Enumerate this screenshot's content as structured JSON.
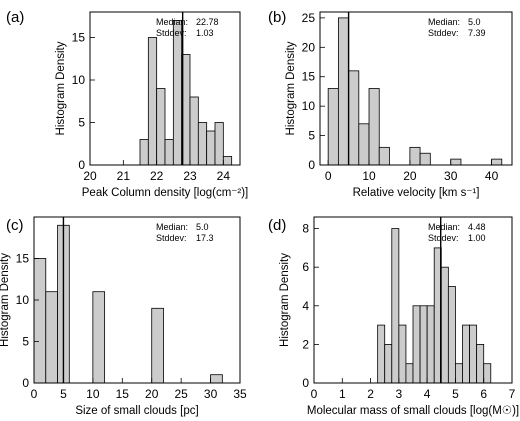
{
  "chart_data": [
    {
      "type": "bar",
      "panel_label": "(a)",
      "xlabel": "Peak Column density [log(cm⁻²)]",
      "ylabel": "Histogram Density",
      "xlim": [
        20,
        24.5
      ],
      "ylim": [
        0,
        18
      ],
      "xticks": [
        20,
        21,
        22,
        23,
        24
      ],
      "xtick_labels": [
        "20",
        "21",
        "22",
        "23",
        "24"
      ],
      "yticks": [
        0,
        5,
        10,
        15
      ],
      "ytick_labels": [
        "0",
        "5",
        "10",
        "15"
      ],
      "bins": [
        {
          "x0": 21.5,
          "x1": 21.75,
          "value": 3
        },
        {
          "x0": 21.75,
          "x1": 22.0,
          "value": 15
        },
        {
          "x0": 22.0,
          "x1": 22.25,
          "value": 9
        },
        {
          "x0": 22.25,
          "x1": 22.5,
          "value": 3
        },
        {
          "x0": 22.5,
          "x1": 22.75,
          "value": 17
        },
        {
          "x0": 22.75,
          "x1": 23.0,
          "value": 13
        },
        {
          "x0": 23.0,
          "x1": 23.25,
          "value": 8
        },
        {
          "x0": 23.25,
          "x1": 23.5,
          "value": 5
        },
        {
          "x0": 23.5,
          "x1": 23.75,
          "value": 4
        },
        {
          "x0": 23.75,
          "x1": 24.0,
          "value": 5
        },
        {
          "x0": 24.0,
          "x1": 24.25,
          "value": 1
        }
      ],
      "median_line": 22.78,
      "stats": {
        "median_label": "Median:",
        "median_value": "22.78",
        "stddev_label": "Stddev:",
        "stddev_value": "1.03"
      }
    },
    {
      "type": "bar",
      "panel_label": "(b)",
      "xlabel": "Relative velocity [km s⁻¹]",
      "ylabel": "Histogram Density",
      "xlim": [
        -2,
        45
      ],
      "ylim": [
        0,
        26
      ],
      "xticks": [
        0,
        10,
        20,
        30,
        40
      ],
      "xtick_labels": [
        "0",
        "10",
        "20",
        "30",
        "40"
      ],
      "yticks": [
        0,
        5,
        10,
        15,
        20,
        25
      ],
      "ytick_labels": [
        "0",
        "5",
        "10",
        "15",
        "20",
        "25"
      ],
      "bins": [
        {
          "x0": 0,
          "x1": 2.5,
          "value": 13
        },
        {
          "x0": 2.5,
          "x1": 5,
          "value": 25
        },
        {
          "x0": 5,
          "x1": 7.5,
          "value": 16
        },
        {
          "x0": 7.5,
          "x1": 10,
          "value": 7
        },
        {
          "x0": 10,
          "x1": 12.5,
          "value": 13
        },
        {
          "x0": 12.5,
          "x1": 15,
          "value": 3
        },
        {
          "x0": 20,
          "x1": 22.5,
          "value": 3
        },
        {
          "x0": 22.5,
          "x1": 25,
          "value": 2
        },
        {
          "x0": 30,
          "x1": 32.5,
          "value": 1
        },
        {
          "x0": 40,
          "x1": 42.5,
          "value": 1
        }
      ],
      "median_line": 5.0,
      "stats": {
        "median_label": "Median:",
        "median_value": "5.0",
        "stddev_label": "Stddev:",
        "stddev_value": "7.39"
      }
    },
    {
      "type": "bar",
      "panel_label": "(c)",
      "xlabel": "Size of small clouds [pc]",
      "ylabel": "Histogram Density",
      "xlim": [
        0,
        35
      ],
      "ylim": [
        0,
        20
      ],
      "xticks": [
        0,
        5,
        10,
        15,
        20,
        25,
        30,
        35
      ],
      "xtick_labels": [
        "0",
        "5",
        "10",
        "15",
        "20",
        "25",
        "30",
        "35"
      ],
      "yticks": [
        0,
        5,
        10,
        15
      ],
      "ytick_labels": [
        "0",
        "5",
        "10",
        "15"
      ],
      "bins": [
        {
          "x0": 0,
          "x1": 2,
          "value": 15
        },
        {
          "x0": 2,
          "x1": 4,
          "value": 11
        },
        {
          "x0": 4,
          "x1": 6,
          "value": 19
        },
        {
          "x0": 10,
          "x1": 12,
          "value": 11
        },
        {
          "x0": 20,
          "x1": 22,
          "value": 9
        },
        {
          "x0": 30,
          "x1": 32,
          "value": 1
        }
      ],
      "median_line": 5.0,
      "stats": {
        "median_label": "Median:",
        "median_value": "5.0",
        "stddev_label": "Stddev:",
        "stddev_value": "17.3"
      }
    },
    {
      "type": "bar",
      "panel_label": "(d)",
      "xlabel": "Molecular mass of small clouds [log(M☉)]",
      "ylabel": "Histogram Density",
      "xlim": [
        0,
        7
      ],
      "ylim": [
        0,
        8.6
      ],
      "xticks": [
        0,
        1,
        2,
        3,
        4,
        5,
        6,
        7
      ],
      "xtick_labels": [
        "0",
        "1",
        "2",
        "3",
        "4",
        "5",
        "6",
        "7"
      ],
      "yticks": [
        0,
        2,
        4,
        6,
        8
      ],
      "ytick_labels": [
        "0",
        "2",
        "4",
        "6",
        "8"
      ],
      "bins": [
        {
          "x0": 2.25,
          "x1": 2.5,
          "value": 3
        },
        {
          "x0": 2.5,
          "x1": 2.75,
          "value": 2
        },
        {
          "x0": 2.75,
          "x1": 3.0,
          "value": 8
        },
        {
          "x0": 3.0,
          "x1": 3.25,
          "value": 3
        },
        {
          "x0": 3.25,
          "x1": 3.5,
          "value": 1
        },
        {
          "x0": 3.5,
          "x1": 3.75,
          "value": 4
        },
        {
          "x0": 3.75,
          "x1": 4.0,
          "value": 4
        },
        {
          "x0": 4.0,
          "x1": 4.25,
          "value": 4
        },
        {
          "x0": 4.25,
          "x1": 4.5,
          "value": 7
        },
        {
          "x0": 4.5,
          "x1": 4.75,
          "value": 6
        },
        {
          "x0": 4.75,
          "x1": 5.0,
          "value": 5
        },
        {
          "x0": 5.0,
          "x1": 5.25,
          "value": 1
        },
        {
          "x0": 5.25,
          "x1": 5.5,
          "value": 3
        },
        {
          "x0": 5.5,
          "x1": 5.75,
          "value": 3
        },
        {
          "x0": 5.75,
          "x1": 6.0,
          "value": 2
        },
        {
          "x0": 6.0,
          "x1": 6.25,
          "value": 1
        }
      ],
      "median_line": 4.48,
      "stats": {
        "median_label": "Median:",
        "median_value": "4.48",
        "stddev_label": "Stddev:",
        "stddev_value": "1.00"
      }
    }
  ]
}
